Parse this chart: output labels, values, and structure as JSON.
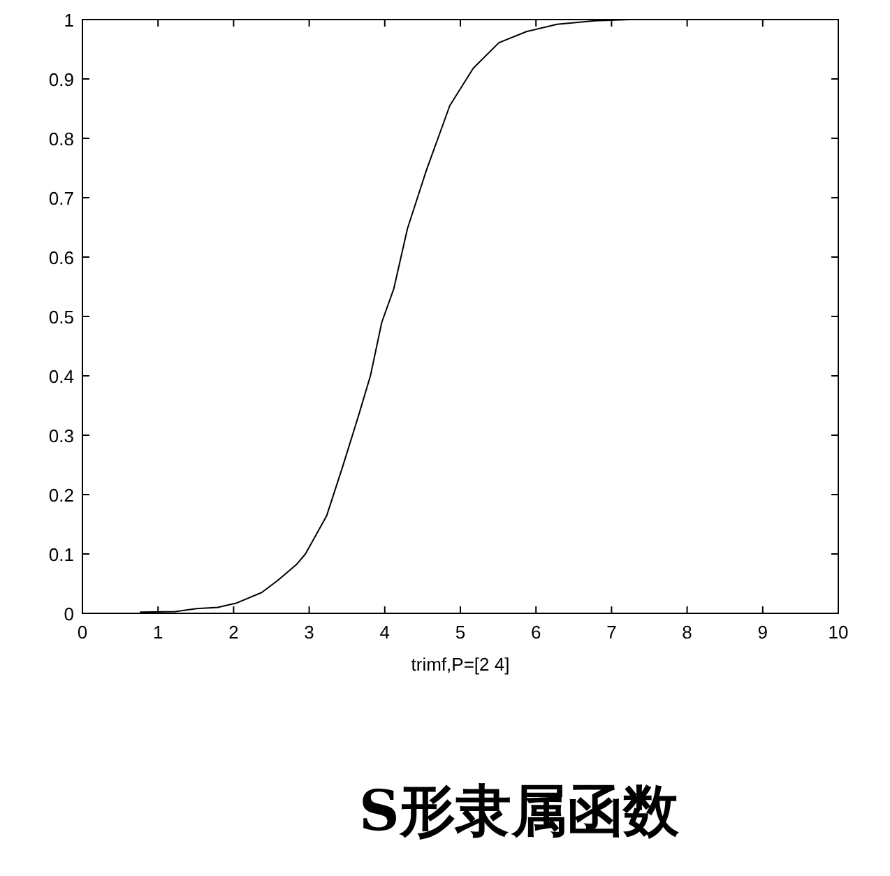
{
  "chart_data": {
    "type": "line",
    "title": "S形隶属函数",
    "xlabel": "trimf,P=[2 4]",
    "x": [
      0.76,
      1.23,
      1.51,
      1.79,
      2.03,
      2.37,
      2.58,
      2.83,
      2.95,
      3.23,
      3.44,
      3.66,
      3.81,
      3.96,
      4.12,
      4.3,
      4.55,
      4.86,
      5.17,
      5.51,
      5.88,
      6.28,
      6.78,
      7.24
    ],
    "values": [
      0.002,
      0.003,
      0.008,
      0.01,
      0.017,
      0.035,
      0.055,
      0.082,
      0.1,
      0.164,
      0.246,
      0.336,
      0.4,
      0.49,
      0.547,
      0.648,
      0.746,
      0.855,
      0.918,
      0.961,
      0.98,
      0.992,
      0.998,
      1.0
    ],
    "color": "#000000",
    "xlim": [
      0,
      10
    ],
    "ylim": [
      0,
      1
    ],
    "xticks": [
      0,
      1,
      2,
      3,
      4,
      5,
      6,
      7,
      8,
      9,
      10
    ],
    "yticks": [
      0,
      0.1,
      0.2,
      0.3,
      0.4,
      0.5,
      0.6,
      0.7,
      0.8,
      0.9,
      1
    ],
    "grid": false,
    "marker": "none",
    "line_style": "solid"
  }
}
